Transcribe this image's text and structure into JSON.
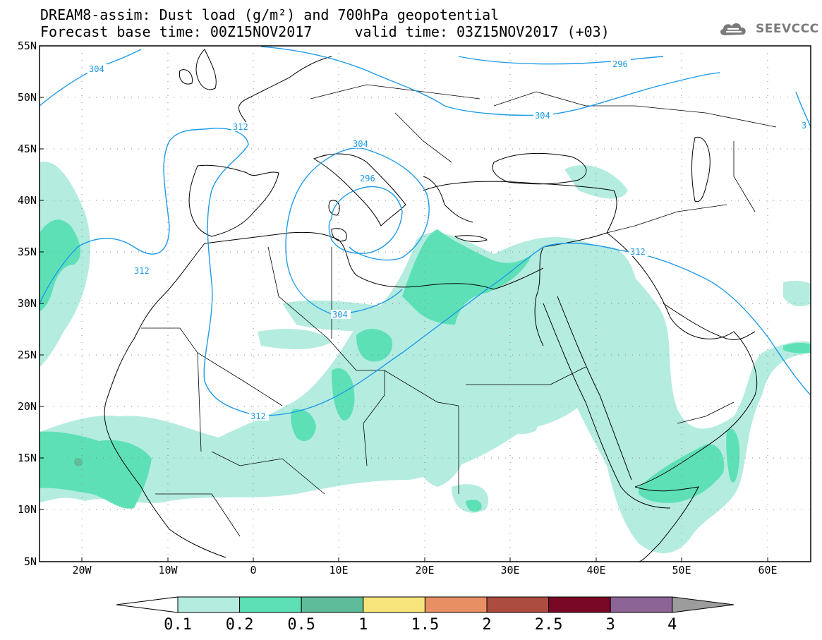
{
  "header": {
    "title_line_1": "DREAM8-assim: Dust load (g/m²) and 700hPa geopotential",
    "title_line_2": "Forecast base time: 00Z15NOV2017     valid time: 03Z15NOV2017 (+03)"
  },
  "logo": {
    "text": "SEEVCCC",
    "icon": "cloud-icon"
  },
  "map": {
    "lat_labels": [
      "55N",
      "50N",
      "45N",
      "40N",
      "35N",
      "30N",
      "25N",
      "20N",
      "15N",
      "10N",
      "5N"
    ],
    "lon_labels": [
      "20W",
      "10W",
      "0",
      "10E",
      "20E",
      "30E",
      "40E",
      "50E",
      "60E"
    ],
    "contour_labels": [
      "304",
      "296",
      "304",
      "312",
      "312",
      "304",
      "296",
      "312",
      "304",
      "312",
      "312",
      "3"
    ]
  },
  "colorbar": {
    "labels": [
      "0.1",
      "0.2",
      "0.5",
      "1",
      "1.5",
      "2",
      "2.5",
      "3",
      "4"
    ],
    "colors": [
      "#b4ece0",
      "#5ee0b6",
      "#5ebc9a",
      "#f6e57a",
      "#e89064",
      "#ac4c40",
      "#780826",
      "#8c6496"
    ],
    "under_color": "#ffffff",
    "over_color": "#9c9c9c"
  },
  "colors": {
    "contour": "#1e9be8",
    "coast": "#000000",
    "dust_low": "#b4ece0",
    "dust_mid": "#5ee0b6",
    "dust_high": "#5ebc9a"
  }
}
